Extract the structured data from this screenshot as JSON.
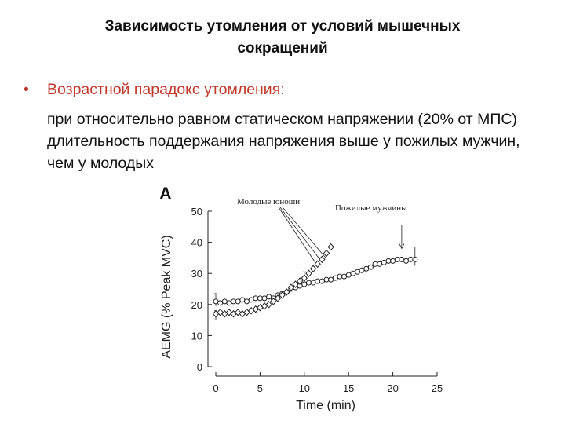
{
  "slide": {
    "title_line1": "Зависимость утомления от условий мышечных",
    "title_line2": "сокращений",
    "bullet_symbol": "•",
    "bullet_lead": "Возрастной парадокс утомления:",
    "bullet_body": "при относительно равном статическом напряжении (20% от МПС) длительность поддержания напряжения выше у пожилых мужчин, чем у молодых"
  },
  "colors": {
    "bullet": "#c0392b",
    "text": "#111111",
    "plot": "#222222"
  },
  "chart_data": {
    "type": "scatter",
    "panel_label": "A",
    "xlabel": "Time (min)",
    "ylabel": "AEMG (% Peak MVC)",
    "xlim": [
      0,
      25
    ],
    "ylim": [
      0,
      50
    ],
    "xticks": [
      0,
      5,
      10,
      15,
      20,
      25
    ],
    "yticks": [
      0,
      10,
      20,
      30,
      40,
      50
    ],
    "annotations": [
      {
        "text": "Молодые юноши",
        "points_to": [
          12.6,
          34.5
        ]
      },
      {
        "text": "Пожилые мужчины",
        "points_to": [
          21,
          38
        ]
      }
    ],
    "series": [
      {
        "marker": "circle",
        "x": [
          0,
          0.5,
          1,
          1.5,
          2,
          2.5,
          3,
          3.5,
          4,
          4.5,
          5,
          5.5,
          6,
          6.5,
          7,
          7.5,
          8,
          8.5,
          9,
          9.5,
          10,
          10.5,
          11,
          11.5,
          12,
          12.5,
          13,
          13.5,
          14,
          14.5,
          15,
          15.5,
          16,
          16.5,
          17,
          17.5,
          18,
          18.5,
          19,
          19.5,
          20,
          20.5,
          21,
          21.5,
          22,
          22.5
        ],
        "y": [
          21,
          20.5,
          21,
          20.5,
          21,
          21,
          21.5,
          21,
          21.5,
          22,
          22,
          22,
          22.5,
          22,
          23,
          23.5,
          24,
          25,
          25.5,
          26,
          26.5,
          27,
          27,
          27.5,
          27.5,
          28,
          28,
          28.5,
          29,
          29,
          29.5,
          30,
          30.5,
          31,
          31.5,
          32,
          33,
          33,
          33.5,
          34,
          34,
          34.5,
          34.5,
          34,
          34.5,
          34.5
        ]
      },
      {
        "marker": "diamond",
        "x": [
          0,
          0.5,
          1,
          1.5,
          2,
          2.5,
          3,
          3.5,
          4,
          4.5,
          5,
          5.5,
          6,
          6.5,
          7,
          7.5,
          8,
          8.5,
          9,
          9.5,
          10,
          10.5,
          11,
          11.5,
          12,
          12.5,
          13
        ],
        "y": [
          17,
          17.5,
          17,
          17.5,
          17,
          17.5,
          17,
          17.5,
          18,
          18.5,
          19,
          19.5,
          20,
          21,
          22,
          23,
          24,
          25.5,
          26.5,
          27.5,
          28.5,
          30,
          31.5,
          33,
          34.5,
          36.5,
          38.5
        ]
      }
    ],
    "error_bars": [
      {
        "x": 0,
        "y": 21,
        "up": 2.5,
        "down": 1.5
      },
      {
        "x": 0,
        "y": 17,
        "up": 1,
        "down": 2
      },
      {
        "x": 10,
        "y": 28.5,
        "up": 2,
        "down": 1
      },
      {
        "x": 22.5,
        "y": 34.5,
        "up": 4,
        "down": 2
      }
    ]
  }
}
